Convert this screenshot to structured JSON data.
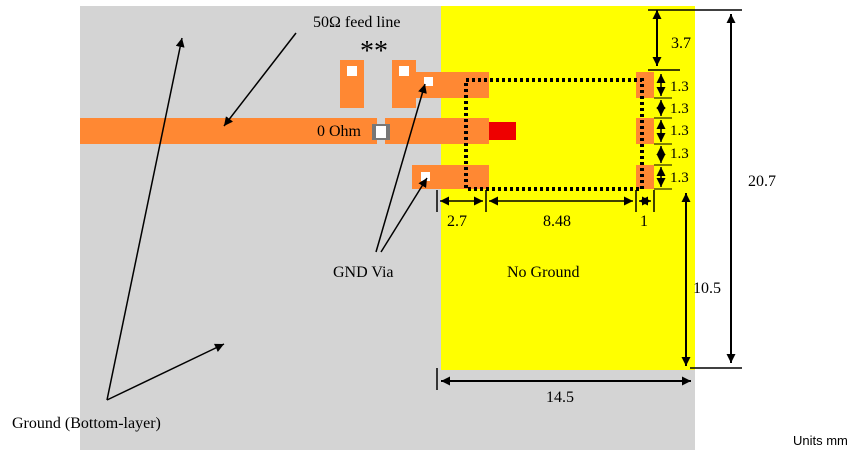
{
  "labels": {
    "feed_line": "50Ω feed line",
    "asterisks": "**",
    "zero_ohm": "0 Ohm",
    "gnd_via": "GND Via",
    "no_ground": "No Ground",
    "ground": "Ground (Bottom-layer)",
    "units": "Units mm"
  },
  "dimensions": {
    "top_gap": "3.7",
    "pad_1": "1.3",
    "gap_1": "1.3",
    "pad_2": "1.3",
    "gap_2": "1.3",
    "pad_3": "1.3",
    "total_height": "20.7",
    "lower_height": "10.5",
    "left_margin": "2.7",
    "module_width": "8.48",
    "right_margin": "1",
    "board_width": "14.5"
  },
  "colors": {
    "ground": "#d4d4d4",
    "no_ground": "#ffff00",
    "copper": "#ff8833",
    "chip_pad": "#ee0000",
    "dotted": "#000000"
  }
}
